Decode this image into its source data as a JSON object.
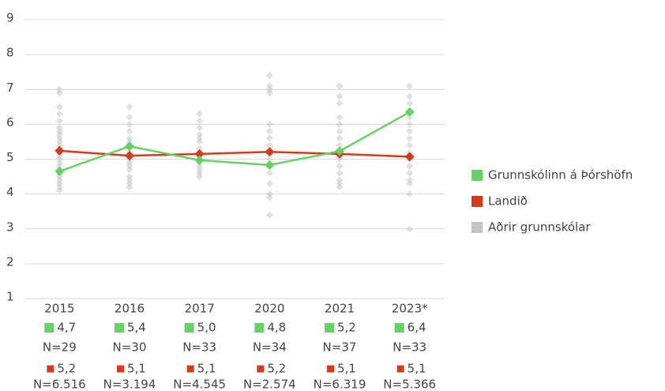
{
  "chart_data": {
    "type": "line",
    "categories": [
      "2015",
      "2016",
      "2017",
      "2020",
      "2021",
      "2023*"
    ],
    "ylim": [
      1,
      9
    ],
    "yticks": [
      1,
      2,
      3,
      4,
      5,
      6,
      7,
      8,
      9
    ],
    "grid": true,
    "legend": "right",
    "series": [
      {
        "name": "Grunnskólinn á Þórshöfn",
        "color": "#66d166",
        "values": [
          4.65,
          5.37,
          4.97,
          4.83,
          5.23,
          6.35
        ],
        "value_labels": [
          "4,7",
          "5,4",
          "5,0",
          "4,8",
          "5,2",
          "6,4"
        ],
        "n": [
          29,
          30,
          33,
          34,
          37,
          33
        ],
        "n_labels": [
          "N=29",
          "N=30",
          "N=33",
          "N=34",
          "N=37",
          "N=33"
        ]
      },
      {
        "name": "Landið",
        "color": "#d8391b",
        "values": [
          5.24,
          5.1,
          5.15,
          5.21,
          5.15,
          5.07
        ],
        "value_labels": [
          "5,2",
          "5,1",
          "5,1",
          "5,2",
          "5,1",
          "5,1"
        ],
        "n": [
          6516,
          3194,
          4545,
          2574,
          6319,
          5366
        ],
        "n_labels": [
          "N=6.516",
          "N=3.194",
          "N=4.545",
          "N=2.574",
          "N=6.319",
          "N=5.366"
        ]
      },
      {
        "name": "Aðrir grunnskólar",
        "color": "#c4c4c4",
        "points": true,
        "values": [
          [
            7.0,
            6.9,
            6.5,
            6.3,
            6.1,
            5.9,
            5.8,
            5.7,
            5.6,
            5.5,
            5.4,
            5.3,
            5.2,
            5.1,
            5.0,
            4.9,
            4.8,
            4.7,
            4.6,
            4.5,
            4.4,
            4.3,
            4.2,
            4.1
          ],
          [
            6.5,
            6.2,
            6.0,
            5.8,
            5.6,
            5.5,
            5.3,
            5.2,
            5.0,
            4.9,
            4.8,
            4.7,
            4.5,
            4.4,
            4.3,
            4.2
          ],
          [
            6.3,
            6.1,
            5.9,
            5.7,
            5.6,
            5.5,
            5.3,
            5.2,
            5.1,
            5.0,
            4.9,
            4.8,
            4.7,
            4.6,
            4.5
          ],
          [
            7.4,
            7.1,
            7.0,
            6.9,
            6.0,
            5.8,
            5.6,
            5.4,
            5.2,
            5.0,
            4.8,
            4.6,
            4.3,
            4.0,
            3.9,
            3.4
          ],
          [
            7.1,
            6.8,
            6.6,
            6.2,
            6.0,
            5.8,
            5.6,
            5.4,
            5.2,
            5.0,
            4.8,
            4.6,
            4.4,
            4.3,
            4.2
          ],
          [
            7.1,
            6.8,
            6.6,
            6.4,
            6.2,
            6.0,
            5.8,
            5.6,
            5.4,
            5.2,
            5.0,
            4.8,
            4.6,
            4.4,
            4.3,
            4.0,
            3.0
          ]
        ]
      }
    ]
  }
}
